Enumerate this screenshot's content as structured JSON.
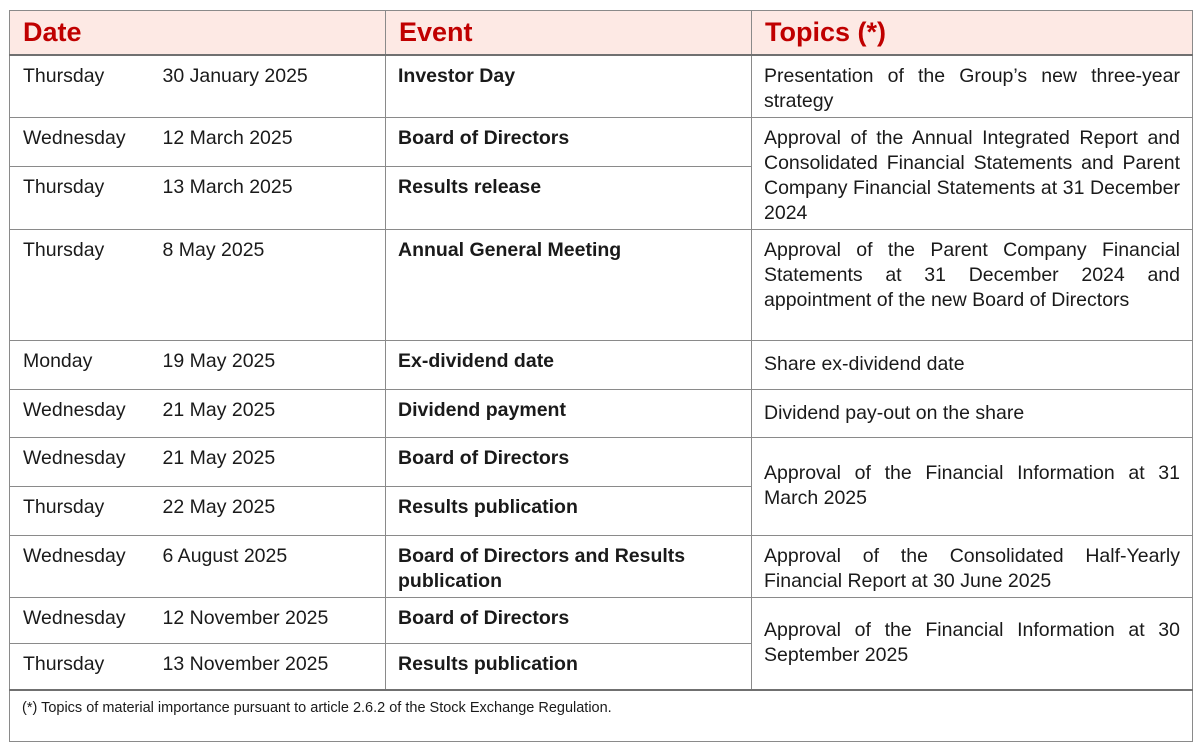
{
  "header": {
    "date": "Date",
    "event": "Event",
    "topics": "Topics (*)"
  },
  "rows": [
    {
      "day": "Thursday",
      "date": "30 January 2025",
      "event": "Investor Day",
      "topic": "Presentation of the Group’s new three-year strategy"
    },
    {
      "day": "Wednesday",
      "date": "12 March 2025",
      "event": "Board of Directors",
      "topic": "Approval of the Annual Integrated Report and Consolidated Financial Statements and Parent Company Financial Statements at 31 December 2024"
    },
    {
      "day": "Thursday",
      "date": "13 March 2025",
      "event": "Results release"
    },
    {
      "day": "Thursday",
      "date": "8 May 2025",
      "event": "Annual General Meeting",
      "topic": "Approval of the Parent Company Financial Statements at 31 December 2024 and appointment of the new Board of Directors"
    },
    {
      "day": "Monday",
      "date": "19 May 2025",
      "event": "Ex-dividend date",
      "topic": "Share ex-dividend date"
    },
    {
      "day": "Wednesday",
      "date": "21 May 2025",
      "event": "Dividend payment",
      "topic": "Dividend pay-out on the share"
    },
    {
      "day": "Wednesday",
      "date": "21 May 2025",
      "event": "Board of Directors",
      "topic": "Approval of the Financial Information at 31 March 2025"
    },
    {
      "day": "Thursday",
      "date": "22 May 2025",
      "event": "Results publication"
    },
    {
      "day": "Wednesday",
      "date": "6 August 2025",
      "event": "Board of Directors and Results publication",
      "topic": "Approval of the Consolidated Half-Yearly Financial Report at 30 June 2025"
    },
    {
      "day": "Wednesday",
      "date": "12 November 2025",
      "event": "Board of Directors",
      "topic": "Approval of the Financial Information at 30 September 2025"
    },
    {
      "day": "Thursday",
      "date": "13 November 2025",
      "event": "Results publication"
    }
  ],
  "footnote": "(*) Topics of material importance pursuant to article 2.6.2 of the Stock Exchange Regulation.",
  "colors": {
    "header_text": "#c00000",
    "header_bg": "#fde9e4"
  }
}
